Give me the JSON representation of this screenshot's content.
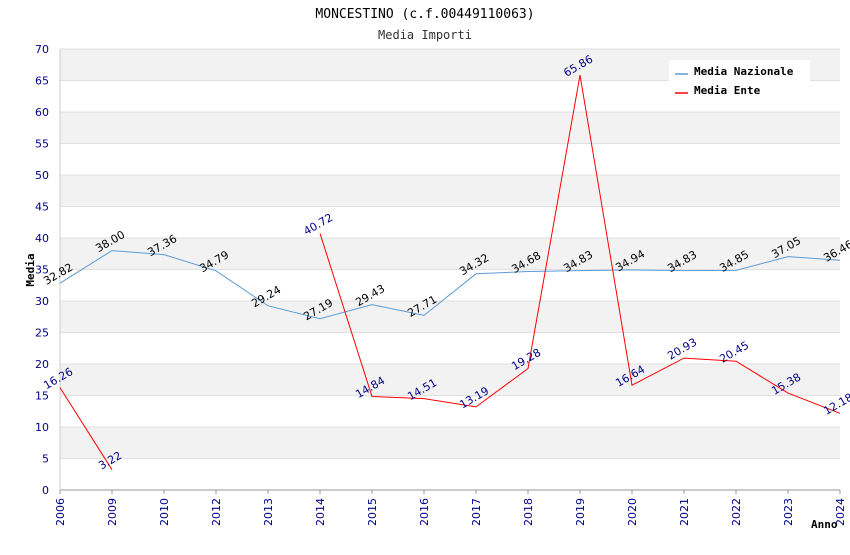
{
  "chart_data": {
    "type": "line",
    "title": "MONCESTINO (c.f.00449110063)",
    "subtitle": "Media Importi",
    "xlabel": "Anno",
    "ylabel": "Media",
    "ylim": [
      0,
      70
    ],
    "yticks": [
      0,
      5,
      10,
      15,
      20,
      25,
      30,
      35,
      40,
      45,
      50,
      55,
      60,
      65,
      70
    ],
    "categories": [
      "2006",
      "2009",
      "2010",
      "2012",
      "2013",
      "2014",
      "2015",
      "2016",
      "2017",
      "2018",
      "2019",
      "2020",
      "2021",
      "2022",
      "2023",
      "2024"
    ],
    "grid": true,
    "legend_position": "top-right",
    "series": [
      {
        "name": "Media Nazionale",
        "color": "#5b9bd5",
        "values": [
          32.82,
          38.0,
          37.36,
          34.79,
          29.24,
          27.19,
          29.43,
          27.71,
          34.32,
          34.68,
          34.83,
          34.94,
          34.83,
          34.85,
          37.05,
          36.46
        ],
        "labels": [
          "32.82",
          "38.00",
          "37.36",
          "34.79",
          "29.24",
          "27.19",
          "29.43",
          "27.71",
          "34.32",
          "34.68",
          "34.83",
          "34.94",
          "34.83",
          "34.85",
          "37.05",
          "36.46"
        ]
      },
      {
        "name": "Media Ente",
        "color": "#ff0000",
        "values": [
          16.26,
          3.22,
          null,
          null,
          null,
          40.72,
          14.84,
          14.51,
          13.19,
          19.28,
          65.86,
          16.64,
          20.93,
          20.45,
          15.38,
          12.18
        ],
        "labels": [
          "16.26",
          "3.22",
          "",
          "",
          "",
          "40.72",
          "14.84",
          "14.51",
          "13.19",
          "19.28",
          "65.86",
          "16.64",
          "20.93",
          "20.45",
          "15.38",
          "12.18"
        ]
      }
    ]
  }
}
